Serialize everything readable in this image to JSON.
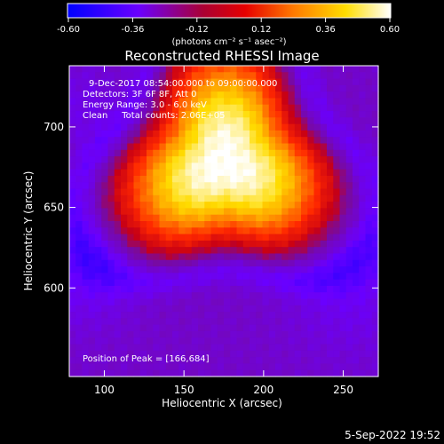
{
  "chart_data": {
    "type": "heatmap",
    "title": "Reconstructed RHESSI Image",
    "colorbar": {
      "min": -0.6,
      "max": 0.6,
      "tick_labels": [
        "-0.60",
        "-0.36",
        "-0.12",
        "0.12",
        "0.36",
        "0.60"
      ],
      "ticks": [
        -0.6,
        -0.36,
        -0.12,
        0.12,
        0.36,
        0.6
      ],
      "unit_label": "(photons cm⁻² s⁻¹ asec⁻²)",
      "colors": [
        "#0000ff",
        "#7a00ff",
        "#cc0000",
        "#ff6600",
        "#ffcc00",
        "#ffffff"
      ]
    },
    "xlabel": "Heliocentric X (arcsec)",
    "ylabel": "Heliocentric Y (arcsec)",
    "xlim": [
      78,
      272
    ],
    "ylim": [
      545,
      738
    ],
    "x_ticks": [
      100,
      150,
      200,
      250
    ],
    "x_tick_labels": [
      "100",
      "150",
      "200",
      "250"
    ],
    "y_ticks": [
      600,
      650,
      700
    ],
    "y_tick_labels": [
      "600",
      "650",
      "700"
    ],
    "annotations": {
      "line1": "9-Dec-2017 08:54:00.000 to 09:00:00.000",
      "line2": "Detectors: 3F 6F 8F, Att 0",
      "line3": "Energy Range: 3.0 - 6.0 keV",
      "line4": "Clean     Total counts: 2.06E+05",
      "peak": "Position of Peak = [166,684]"
    },
    "peak": [
      166,
      684
    ],
    "timestamp": "5-Sep-2022 19:52"
  }
}
